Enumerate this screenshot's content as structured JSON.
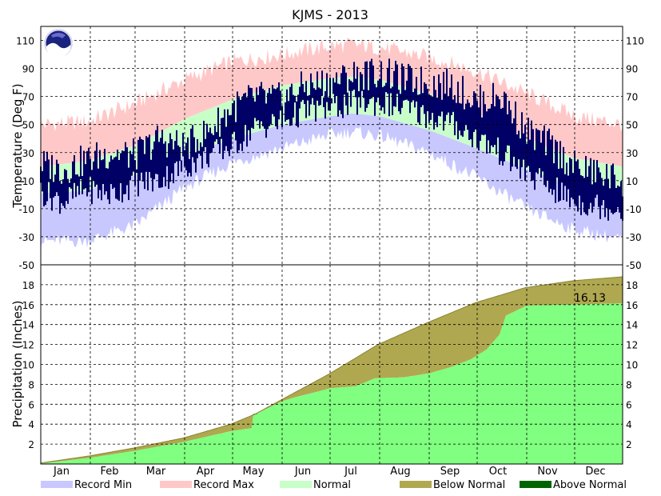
{
  "chart_data": [
    {
      "type": "area",
      "title": "KJMS - 2013",
      "ylabel": "Temperature (Deg F)",
      "ylim": [
        -50,
        120
      ],
      "y_ticks": [
        "-50",
        "-30",
        "-10",
        "10",
        "30",
        "50",
        "70",
        "90",
        "110"
      ],
      "x_ticks": [
        "Jan",
        "Feb",
        "Mar",
        "Apr",
        "May",
        "Jun",
        "Jul",
        "Aug",
        "Sep",
        "Oct",
        "Nov",
        "Dec"
      ],
      "grid": true,
      "series": [
        {
          "name": "Record Min",
          "color": "#c8c8ff",
          "x_day": [
            1,
            30,
            60,
            91,
            121,
            152,
            182,
            196,
            213,
            244,
            274,
            305,
            335,
            365
          ],
          "values": [
            -33,
            -33,
            -22,
            5,
            23,
            33,
            43,
            45,
            42,
            30,
            12,
            -10,
            -25,
            -32
          ]
        },
        {
          "name": "Record Max",
          "color": "#ffc8c8",
          "x_day": [
            1,
            30,
            60,
            91,
            121,
            152,
            182,
            196,
            213,
            244,
            274,
            305,
            335,
            365
          ],
          "values": [
            50,
            52,
            65,
            82,
            95,
            100,
            106,
            107,
            105,
            98,
            88,
            72,
            56,
            50
          ]
        },
        {
          "name": "Normal",
          "color": "#c8ffc8",
          "normal_high": [
            20,
            24,
            35,
            54,
            68,
            78,
            83,
            84,
            82,
            72,
            58,
            40,
            26,
            20
          ],
          "normal_low": [
            1,
            3,
            14,
            28,
            40,
            50,
            56,
            58,
            56,
            46,
            33,
            18,
            6,
            1
          ],
          "x_day": [
            1,
            30,
            60,
            91,
            121,
            152,
            182,
            196,
            213,
            244,
            274,
            305,
            335,
            365
          ]
        }
      ],
      "observed": {
        "color": "#000066",
        "x_day": [
          1,
          15,
          30,
          45,
          60,
          75,
          91,
          106,
          121,
          136,
          152,
          167,
          182,
          196,
          213,
          228,
          244,
          259,
          274,
          289,
          305,
          320,
          335,
          350,
          365
        ],
        "high": [
          22,
          18,
          25,
          30,
          28,
          40,
          34,
          45,
          62,
          70,
          68,
          78,
          80,
          85,
          87,
          82,
          80,
          78,
          66,
          70,
          45,
          35,
          20,
          15,
          10
        ],
        "low": [
          2,
          -5,
          4,
          0,
          8,
          10,
          20,
          28,
          35,
          48,
          52,
          60,
          62,
          65,
          66,
          62,
          56,
          50,
          40,
          30,
          15,
          5,
          -5,
          -8,
          -10
        ]
      },
      "legend_placement": "bottom"
    },
    {
      "type": "area",
      "ylabel": "Precipitation (Inches)",
      "ylim": [
        0,
        20
      ],
      "y_ticks": [
        "2",
        "4",
        "6",
        "8",
        "10",
        "12",
        "14",
        "16",
        "18"
      ],
      "grid": true,
      "annotation": "16.13",
      "series": [
        {
          "name": "Below Normal",
          "color": "#b0a850",
          "role": "normal_cumulative",
          "x_day": [
            1,
            31,
            59,
            90,
            120,
            135,
            151,
            181,
            212,
            243,
            273,
            304,
            334,
            365
          ],
          "values": [
            0.1,
            0.8,
            1.6,
            2.6,
            4.0,
            5.0,
            6.4,
            9.0,
            12.0,
            14.2,
            16.2,
            17.7,
            18.4,
            18.8
          ]
        },
        {
          "name": "Above Normal",
          "color": "#006400",
          "role": "observed_cumulative",
          "x_day": [
            1,
            31,
            59,
            90,
            120,
            133,
            134,
            138,
            152,
            160,
            175,
            182,
            198,
            210,
            228,
            244,
            257,
            270,
            280,
            288,
            292,
            305,
            335,
            365
          ],
          "values": [
            0.05,
            0.6,
            1.3,
            2.2,
            3.3,
            3.6,
            5.0,
            5.2,
            6.3,
            6.7,
            7.3,
            7.6,
            7.8,
            8.6,
            8.7,
            9.1,
            9.7,
            10.5,
            11.5,
            13.0,
            14.9,
            15.9,
            16.0,
            16.13
          ]
        }
      ]
    }
  ],
  "legend": [
    {
      "label": "Record Min",
      "color": "#c8c8ff"
    },
    {
      "label": "Record Max",
      "color": "#ffc8c8"
    },
    {
      "label": "Normal",
      "color": "#c8ffc8"
    },
    {
      "label": "Below Normal",
      "color": "#b0a850"
    },
    {
      "label": "Above Normal",
      "color": "#006400"
    }
  ],
  "noaa_logo_text": "NOAA",
  "obs_fill_color": "#80ff80"
}
